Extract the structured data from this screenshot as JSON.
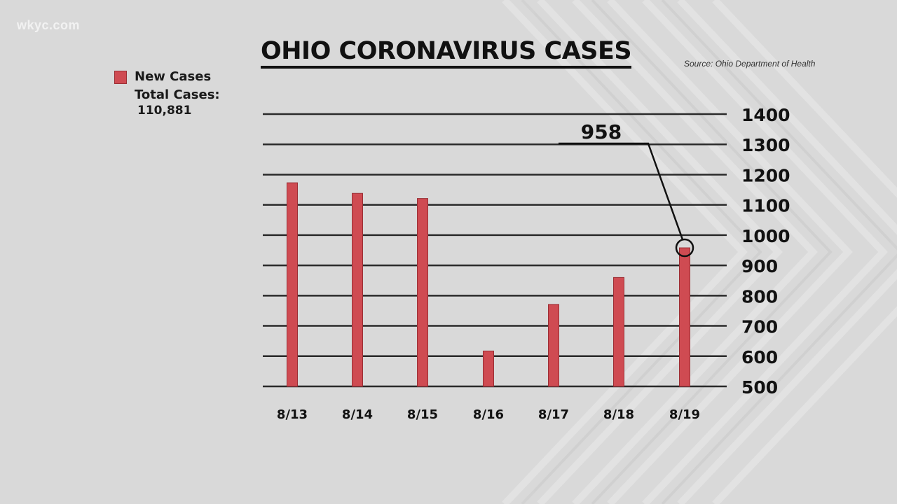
{
  "watermark": "wkyc.com",
  "source": "Source: Ohio Department of Health",
  "legend": {
    "new_cases_label": "New Cases",
    "total_label": "Total Cases:",
    "total_value": "110,881"
  },
  "colors": {
    "bar": "#cf4b52",
    "bar_dark": "#9b2f35",
    "grid": "#2a2a2a",
    "background": "#d9d9d9"
  },
  "chart_data": {
    "type": "bar",
    "title": "OHIO CORONAVIRUS CASES",
    "categories": [
      "8/13",
      "8/14",
      "8/15",
      "8/16",
      "8/17",
      "8/18",
      "8/19"
    ],
    "series": [
      {
        "name": "New Cases",
        "values": [
          1173,
          1138,
          1121,
          617,
          771,
          860,
          958
        ]
      }
    ],
    "ylim": [
      500,
      1400
    ],
    "yticks": [
      500,
      600,
      700,
      800,
      900,
      1000,
      1100,
      1200,
      1300,
      1400
    ],
    "yaxis_side": "right",
    "grid": true,
    "legend_position": "top-left",
    "annotation": {
      "category": "8/19",
      "text": "958"
    }
  }
}
